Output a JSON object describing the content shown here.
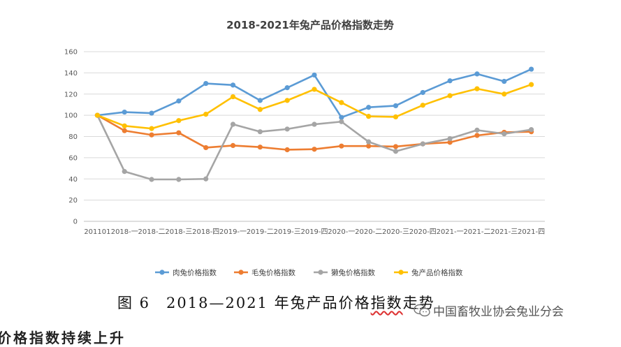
{
  "chart_data": {
    "type": "line",
    "title": "2018-2021年兔产品价格指数走势",
    "categories": [
      "201101",
      "2018-一",
      "2018-二",
      "2018-三",
      "2018-四",
      "2019-一",
      "2019-二",
      "2019-三",
      "2019-四",
      "2020-一",
      "2020-二",
      "2020-三",
      "2020-四",
      "2021-一",
      "2021-二",
      "2021-三",
      "2021-四"
    ],
    "ylim": [
      0,
      160
    ],
    "yticks": [
      0,
      20,
      40,
      60,
      80,
      100,
      120,
      140,
      160
    ],
    "grid": true,
    "legend": "bottom",
    "series": [
      {
        "name": "肉兔价格指数",
        "color": "#5B9BD5",
        "values": [
          100,
          103,
          102,
          113.5,
          130,
          128.5,
          114,
          126,
          138,
          98,
          107.5,
          109,
          121.5,
          132.5,
          139,
          132,
          143.5
        ]
      },
      {
        "name": "毛兔价格指数",
        "color": "#ED7D31",
        "values": [
          100,
          85.5,
          81.5,
          83.5,
          69.5,
          71.5,
          70,
          67.5,
          68,
          71,
          71,
          70.5,
          73,
          74.5,
          81,
          84,
          84.5
        ]
      },
      {
        "name": "獭兔价格指数",
        "color": "#A5A5A5",
        "values": [
          100,
          47,
          39.5,
          39.5,
          40,
          91.5,
          84.5,
          87,
          91.5,
          94,
          75,
          66,
          73,
          78,
          86,
          82.5,
          86.5
        ]
      },
      {
        "name": "兔产品价格指数",
        "color": "#FFC000",
        "values": [
          100,
          90,
          87.5,
          95,
          101,
          117.5,
          105.5,
          114,
          124.5,
          112,
          99,
          98.5,
          109.5,
          118.5,
          125,
          120,
          129
        ]
      }
    ]
  },
  "caption": {
    "prefix": "图 6　2018—2021 年兔产品价格",
    "squiggled": "指数",
    "suffix": "走势"
  },
  "watermark": {
    "text": "中国畜牧业协会兔业分会",
    "icon": "wechat-icon"
  },
  "bottom_text": "价格指数持续上升"
}
